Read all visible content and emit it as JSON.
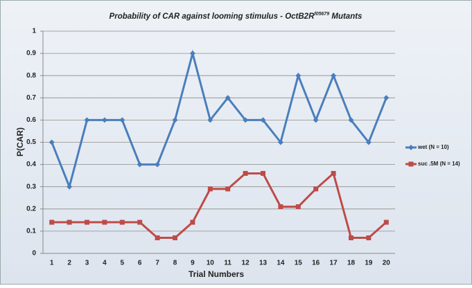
{
  "chart_data": {
    "type": "line",
    "title": {
      "text": "Probability of CAR against looming stimulus - OctB2R",
      "superscript": "f05679",
      "suffix": " Mutants"
    },
    "x_label": "Trial Numbers",
    "y_label": "P(CAR)",
    "categories": [
      1,
      2,
      3,
      4,
      5,
      6,
      7,
      8,
      9,
      10,
      11,
      12,
      13,
      14,
      15,
      16,
      17,
      18,
      19,
      20
    ],
    "series": [
      {
        "name": "wet (N = 10)",
        "color": "#4a7ebb",
        "marker": "diamond",
        "values": [
          0.5,
          0.3,
          0.6,
          0.6,
          0.6,
          0.4,
          0.4,
          0.6,
          0.9,
          0.6,
          0.7,
          0.6,
          0.6,
          0.5,
          0.8,
          0.6,
          0.8,
          0.6,
          0.5,
          0.7
        ]
      },
      {
        "name": "suc .5M (N = 14)",
        "color": "#be4b48",
        "marker": "square",
        "values": [
          0.14,
          0.14,
          0.14,
          0.14,
          0.14,
          0.14,
          0.07,
          0.07,
          0.14,
          0.29,
          0.29,
          0.36,
          0.36,
          0.21,
          0.21,
          0.29,
          0.36,
          0.07,
          0.07,
          0.14
        ]
      }
    ],
    "ylim": [
      0,
      1
    ],
    "yticks": [
      0,
      0.1,
      0.2,
      0.3,
      0.4,
      0.5,
      0.6,
      0.7,
      0.8,
      0.9,
      1
    ],
    "grid": true,
    "legend": "right"
  }
}
